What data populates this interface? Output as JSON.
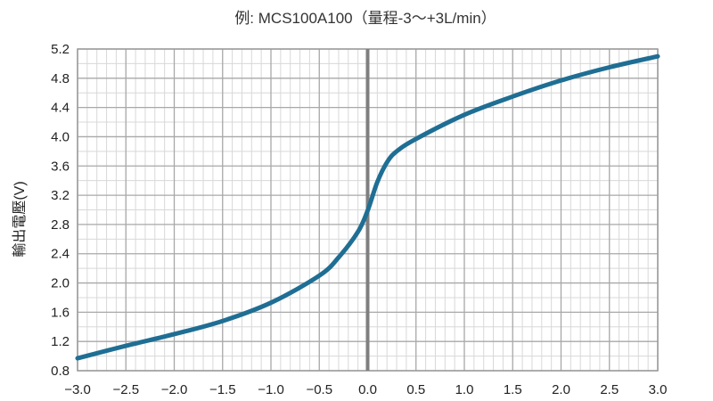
{
  "chart_data": {
    "type": "line",
    "title": "例: MCS100A100（量程-3～+3L/min）",
    "xlabel": "",
    "ylabel": "輸出電壓(V)",
    "xlim": [
      -3.0,
      3.0
    ],
    "ylim": [
      0.8,
      5.2
    ],
    "xticks": [
      "−3.0",
      "−2.5",
      "−2.0",
      "−1.5",
      "−1.0",
      "−0.5",
      "0.0",
      "0.5",
      "1.0",
      "1.5",
      "2.0",
      "2.5",
      "3.0"
    ],
    "yticks": [
      "0.8",
      "1.2",
      "1.6",
      "2.0",
      "2.4",
      "2.8",
      "3.2",
      "3.6",
      "4.0",
      "4.4",
      "4.8",
      "5.2"
    ],
    "grid": true,
    "zero_line": true,
    "series": [
      {
        "color": "#1f6e94",
        "x": [
          -3.0,
          -2.5,
          -2.0,
          -1.5,
          -1.0,
          -0.5,
          -0.3,
          -0.1,
          0.0,
          0.1,
          0.2,
          0.3,
          0.5,
          1.0,
          1.5,
          2.0,
          2.5,
          3.0
        ],
        "y": [
          0.97,
          1.14,
          1.3,
          1.48,
          1.73,
          2.1,
          2.35,
          2.7,
          2.99,
          3.38,
          3.65,
          3.8,
          3.97,
          4.3,
          4.55,
          4.77,
          4.95,
          5.1
        ]
      }
    ]
  }
}
